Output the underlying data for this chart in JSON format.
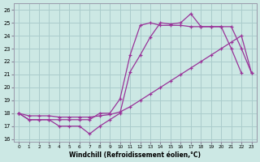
{
  "background_color": "#cce8e4",
  "grid_color": "#aacccc",
  "line_color": "#993399",
  "xlabel": "Windchill (Refroidissement éolien,°C)",
  "xlim": [
    -0.5,
    23.5
  ],
  "ylim": [
    15.8,
    26.5
  ],
  "yticks": [
    16,
    17,
    18,
    19,
    20,
    21,
    22,
    23,
    24,
    25,
    26
  ],
  "xticks": [
    0,
    1,
    2,
    3,
    4,
    5,
    6,
    7,
    8,
    9,
    10,
    11,
    12,
    13,
    14,
    15,
    16,
    17,
    18,
    19,
    20,
    21,
    22,
    23
  ],
  "curve1_x": [
    0,
    1,
    2,
    3,
    4,
    5,
    6,
    7,
    8,
    9,
    10,
    11,
    12,
    13,
    14,
    15,
    16,
    17,
    18,
    19,
    20,
    21,
    22
  ],
  "curve1_y": [
    18.0,
    17.5,
    17.5,
    17.5,
    17.0,
    17.0,
    17.0,
    16.4,
    17.0,
    17.5,
    18.0,
    21.2,
    22.5,
    23.9,
    25.0,
    24.9,
    25.0,
    25.7,
    24.7,
    24.7,
    24.7,
    23.0,
    21.1
  ],
  "curve2_x": [
    0,
    1,
    2,
    3,
    4,
    5,
    6,
    7,
    8,
    9,
    10,
    11,
    12,
    13,
    14,
    15,
    16,
    17,
    18,
    19,
    20,
    21,
    22,
    23
  ],
  "curve2_y": [
    18.0,
    17.8,
    17.8,
    17.8,
    17.7,
    17.7,
    17.7,
    17.7,
    17.8,
    17.9,
    18.1,
    18.5,
    19.0,
    19.5,
    20.0,
    20.5,
    21.0,
    21.5,
    22.0,
    22.5,
    23.0,
    23.5,
    24.0,
    21.1
  ],
  "curve3_x": [
    0,
    1,
    2,
    3,
    4,
    5,
    6,
    7,
    8,
    9,
    10,
    11,
    12,
    13,
    14,
    15,
    16,
    17,
    18,
    19,
    20,
    21,
    22,
    23
  ],
  "curve3_y": [
    18.0,
    17.5,
    17.5,
    17.5,
    17.5,
    17.5,
    17.5,
    17.5,
    18.0,
    18.0,
    19.1,
    22.5,
    24.8,
    25.0,
    24.8,
    24.8,
    24.8,
    24.7,
    24.7,
    24.7,
    24.7,
    24.7,
    23.0,
    21.1
  ]
}
